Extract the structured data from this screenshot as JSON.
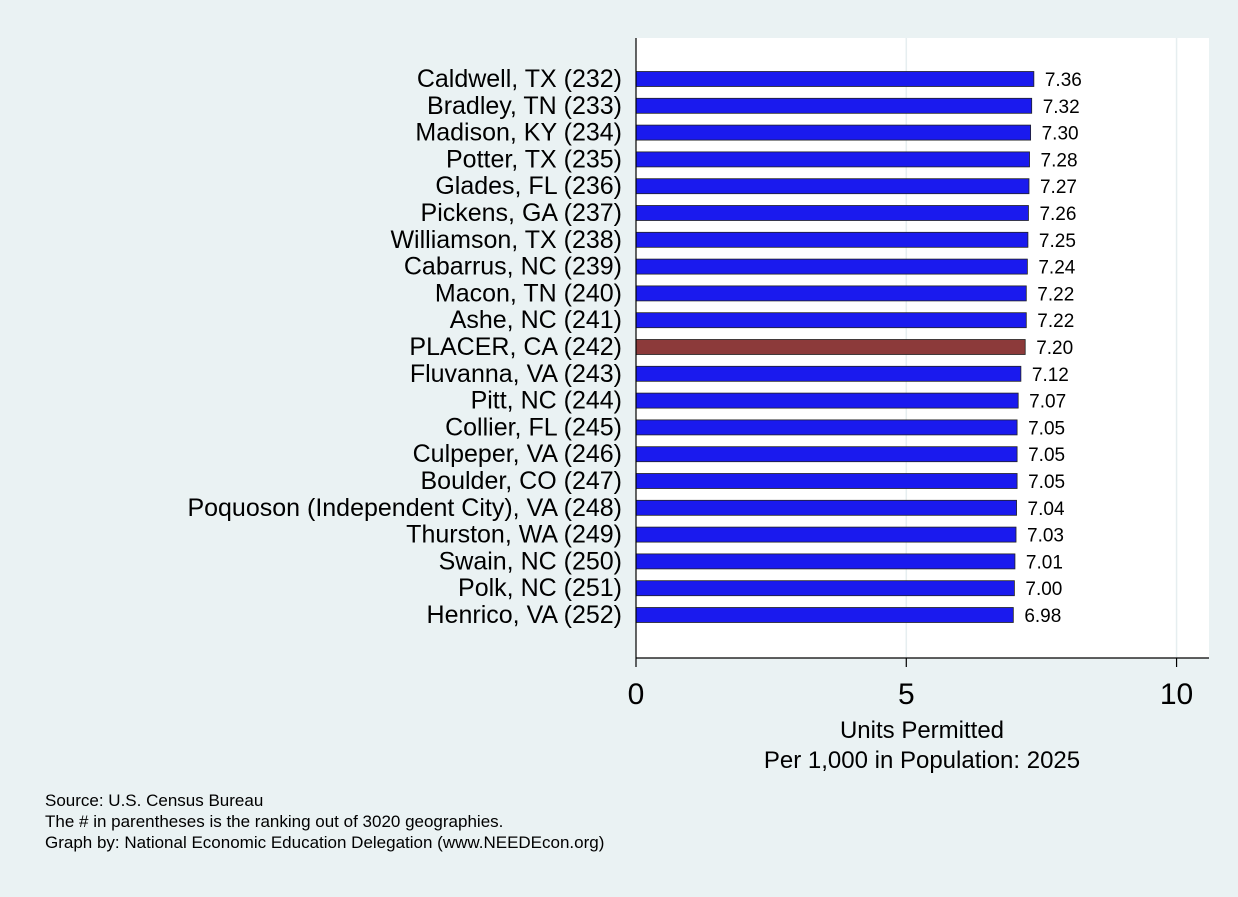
{
  "chart_data": {
    "type": "bar",
    "orientation": "horizontal",
    "categories": [
      "Caldwell, TX (232)",
      "Bradley, TN (233)",
      "Madison, KY (234)",
      "Potter, TX (235)",
      "Glades, FL (236)",
      "Pickens, GA (237)",
      "Williamson, TX (238)",
      "Cabarrus, NC (239)",
      "Macon, TN (240)",
      "Ashe, NC (241)",
      "PLACER, CA (242)",
      "Fluvanna, VA (243)",
      "Pitt, NC (244)",
      "Collier, FL (245)",
      "Culpeper, VA (246)",
      "Boulder, CO (247)",
      "Poquoson (Independent City), VA (248)",
      "Thurston, WA (249)",
      "Swain, NC (250)",
      "Polk, NC (251)",
      "Henrico, VA (252)"
    ],
    "values": [
      7.36,
      7.32,
      7.3,
      7.28,
      7.27,
      7.26,
      7.25,
      7.24,
      7.22,
      7.22,
      7.2,
      7.12,
      7.07,
      7.05,
      7.05,
      7.05,
      7.04,
      7.03,
      7.01,
      7.0,
      6.98
    ],
    "value_labels": [
      "7.36",
      "7.32",
      "7.30",
      "7.28",
      "7.27",
      "7.26",
      "7.25",
      "7.24",
      "7.22",
      "7.22",
      "7.20",
      "7.12",
      "7.07",
      "7.05",
      "7.05",
      "7.05",
      "7.04",
      "7.03",
      "7.01",
      "7.00",
      "6.98"
    ],
    "highlight_index": 10,
    "bar_color": "#1a1aee",
    "highlight_color": "#8c3a3a",
    "xlabel_lines": [
      "Units Permitted",
      "Per 1,000 in Population: 2025"
    ],
    "xticks": [
      0,
      5,
      10
    ],
    "xlim": [
      0,
      10.6
    ],
    "grid": true
  },
  "notes": {
    "source": "Source: U.S. Census Bureau",
    "ranking": "The # in parentheses is the ranking out of 3020 geographies.",
    "credit": "Graph by: National Economic Education Delegation (www.NEEDEcon.org)"
  }
}
